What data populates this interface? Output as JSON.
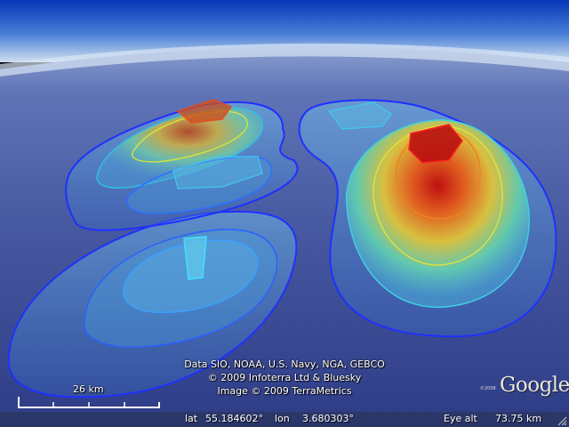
{
  "credits": {
    "line1": "Data SIO, NOAA, U.S. Navy, NGA, GEBCO",
    "line2": "© 2009 Infoterra Ltd & Bluesky",
    "line3": "Image © 2009 TerraMetrics"
  },
  "scale": {
    "label": "26 km"
  },
  "status": {
    "lat_label": "lat",
    "lat_value": "55.184602°",
    "lon_label": "lon",
    "lon_value": "3.680303°",
    "alt_label": "Eye alt",
    "alt_value": "73.75 km"
  },
  "logo": {
    "copyright": "©2008",
    "text": "Google"
  },
  "colors": {
    "sky_top": "#0a3fc4",
    "sky_bottom": "#9bb6dd",
    "sea": "#3d4f9a",
    "contour_outer": "#2020ff",
    "contour_peak": "#d81010"
  }
}
